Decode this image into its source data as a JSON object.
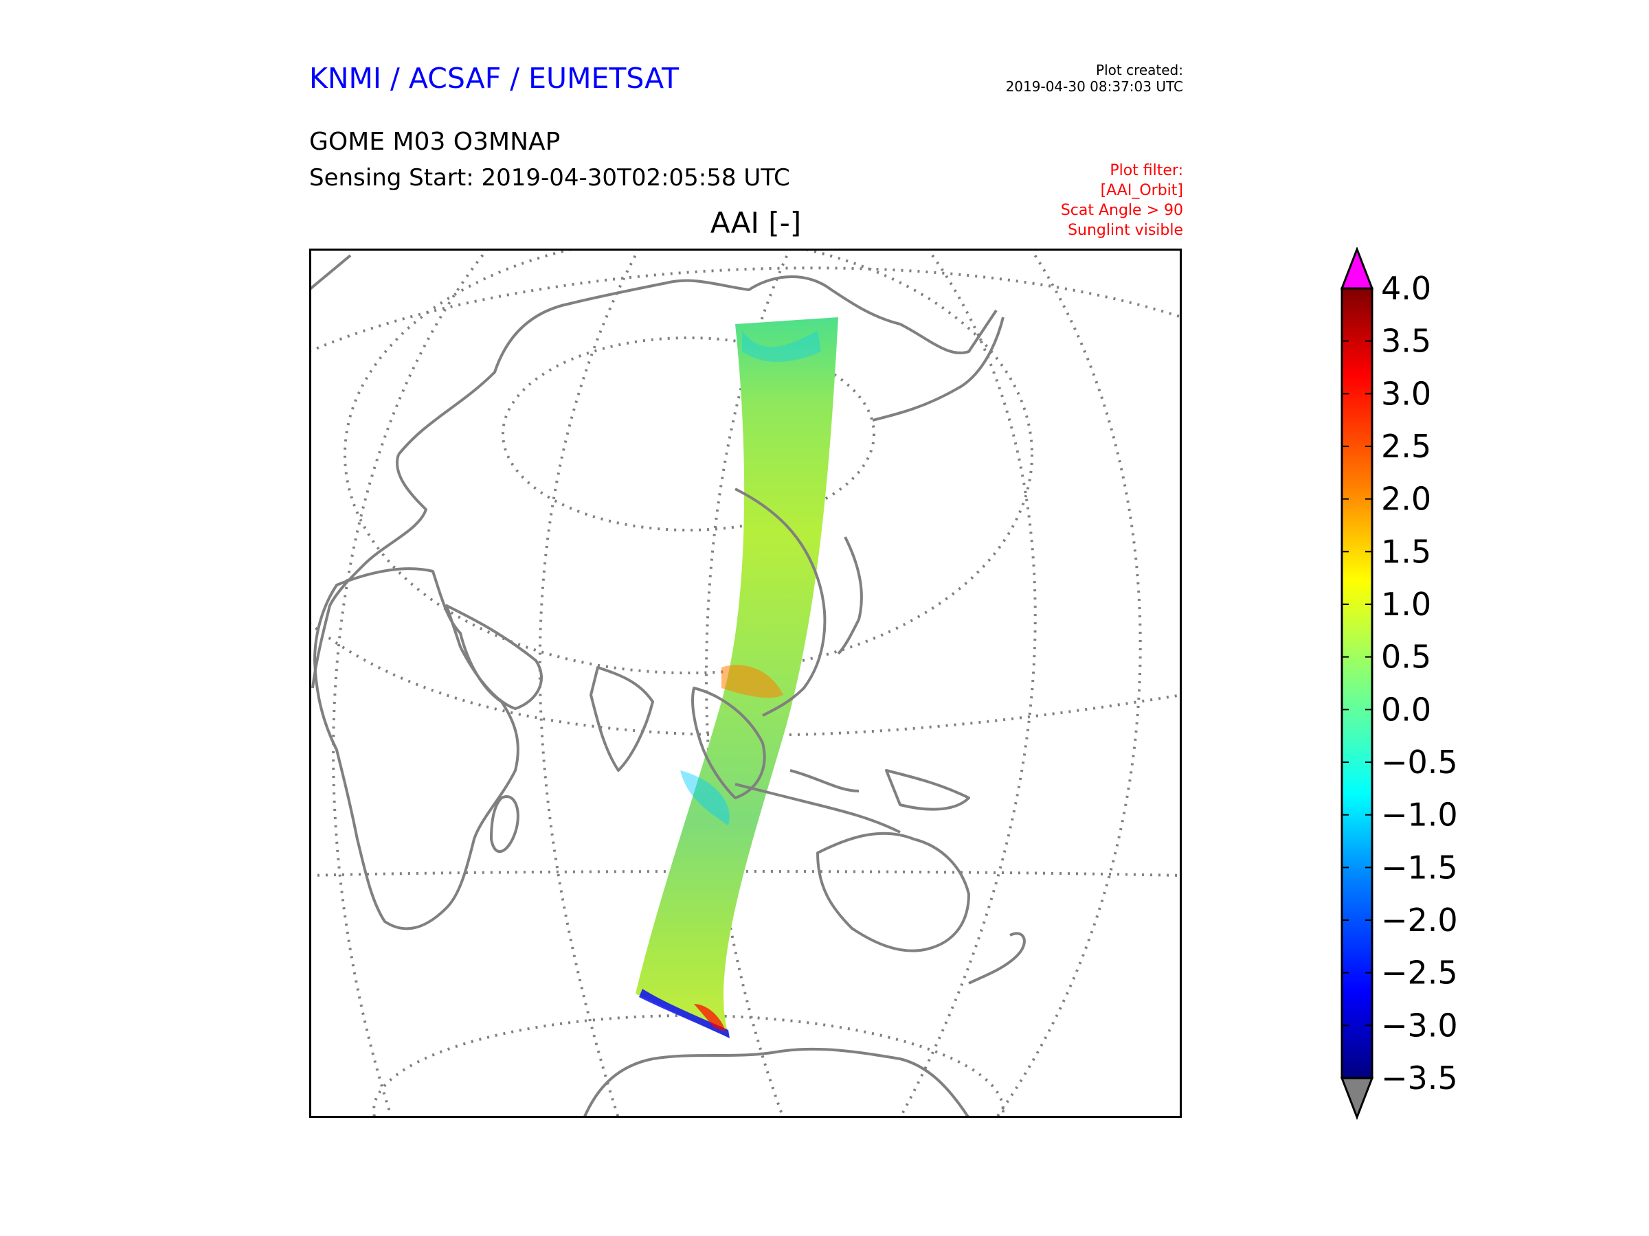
{
  "header": {
    "organization": "KNMI / ACSAF / EUMETSAT",
    "plot_created_label": "Plot created:",
    "plot_created_time": "2019-04-30 08:37:03 UTC",
    "product": "GOME M03 O3MNAP",
    "sensing_start": "Sensing Start: 2019-04-30T02:05:58 UTC"
  },
  "filter": {
    "lines": [
      "Plot filter:",
      "[AAI_Orbit]",
      "Scat Angle > 90",
      "Sunglint visible"
    ],
    "color": "#ff0000"
  },
  "map": {
    "title": "AAI [-]",
    "coastline_color": "#808080",
    "graticule_color": "#808080"
  },
  "colorbar": {
    "min": -3.5,
    "max": 4.0,
    "ticks": [
      "4.0",
      "3.5",
      "3.0",
      "2.5",
      "2.0",
      "1.5",
      "1.0",
      "0.5",
      "0.0",
      "−0.5",
      "−1.0",
      "−1.5",
      "−2.0",
      "−2.5",
      "−3.0",
      "−3.5"
    ],
    "tick_values": [
      4.0,
      3.5,
      3.0,
      2.5,
      2.0,
      1.5,
      1.0,
      0.5,
      0.0,
      -0.5,
      -1.0,
      -1.5,
      -2.0,
      -2.5,
      -3.0,
      -3.5
    ],
    "over_color": "#ff00ff",
    "under_color": "#808080",
    "colors": [
      "#00007f",
      "#0000ff",
      "#007fff",
      "#00ffff",
      "#7fff7f",
      "#ffff00",
      "#ff7f00",
      "#ff0000",
      "#7f0000"
    ]
  }
}
